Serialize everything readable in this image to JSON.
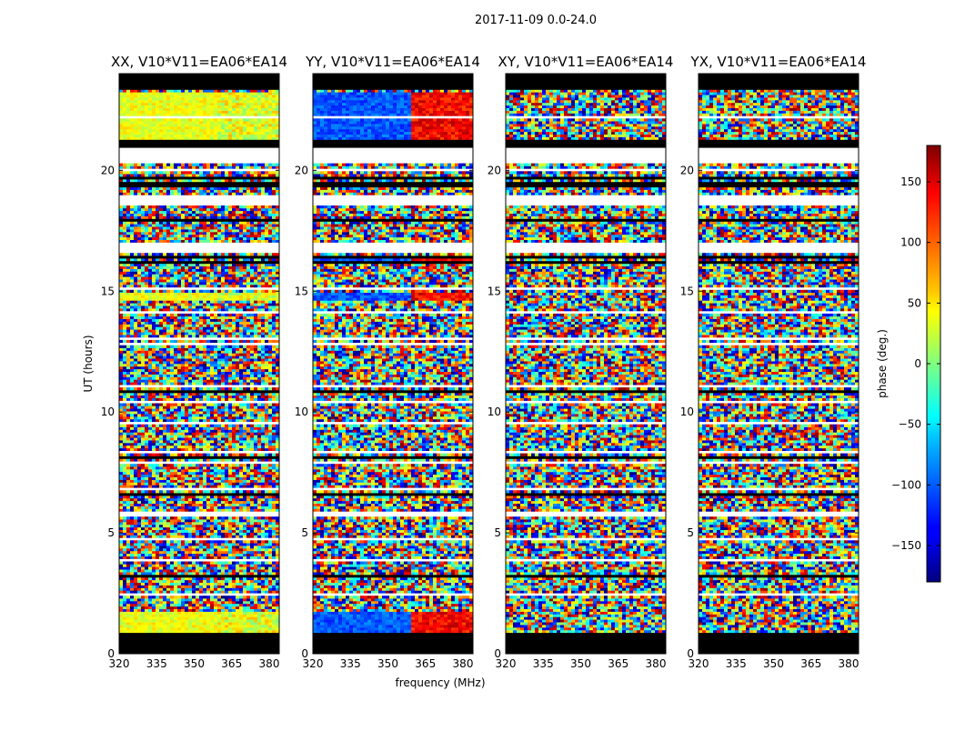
{
  "figure": {
    "suptitle": "2017-11-09 0.0-24.0"
  },
  "chart_data": [
    {
      "type": "heatmap",
      "title": "XX, V10*V11=EA06*EA14",
      "ylabel": "UT (hours)",
      "xlabel": "",
      "xlim": [
        320,
        384
      ],
      "ylim": [
        0,
        24
      ],
      "xticks": [
        320,
        335,
        350,
        365,
        380
      ],
      "yticks": [
        0,
        5,
        10,
        15,
        20
      ],
      "coherent_bands_hours": [
        [
          0.8,
          1.7
        ],
        [
          14.6,
          15.0
        ],
        [
          21.2,
          23.2
        ]
      ]
    },
    {
      "type": "heatmap",
      "title": "YY, V10*V11=EA06*EA14",
      "ylabel": "",
      "xlabel": "frequency (MHz)",
      "xlim": [
        320,
        384
      ],
      "ylim": [
        0,
        24
      ],
      "xticks": [
        320,
        335,
        350,
        365,
        380
      ],
      "yticks": [
        0,
        5,
        10,
        15,
        20
      ],
      "coherent_bands_hours": [
        [
          0.8,
          1.7
        ],
        [
          14.6,
          15.0
        ],
        [
          16.2,
          16.4
        ],
        [
          21.2,
          23.2
        ]
      ]
    },
    {
      "type": "heatmap",
      "title": "XY, V10*V11=EA06*EA14",
      "ylabel": "",
      "xlabel": "",
      "xlim": [
        320,
        384
      ],
      "ylim": [
        0,
        24
      ],
      "xticks": [
        320,
        335,
        350,
        365,
        380
      ],
      "yticks": [
        0,
        5,
        10,
        15,
        20
      ],
      "coherent_bands_hours": []
    },
    {
      "type": "heatmap",
      "title": "YX, V10*V11=EA06*EA14",
      "ylabel": "",
      "xlabel": "",
      "xlim": [
        320,
        384
      ],
      "ylim": [
        0,
        24
      ],
      "xticks": [
        320,
        335,
        350,
        365,
        380
      ],
      "yticks": [
        0,
        5,
        10,
        15,
        20
      ],
      "coherent_bands_hours": []
    }
  ],
  "colorbar": {
    "label": "phase (deg.)",
    "range": [
      -180,
      180
    ],
    "ticks": [
      -150,
      -100,
      -50,
      0,
      50,
      100,
      150
    ],
    "colormap": "jet"
  }
}
